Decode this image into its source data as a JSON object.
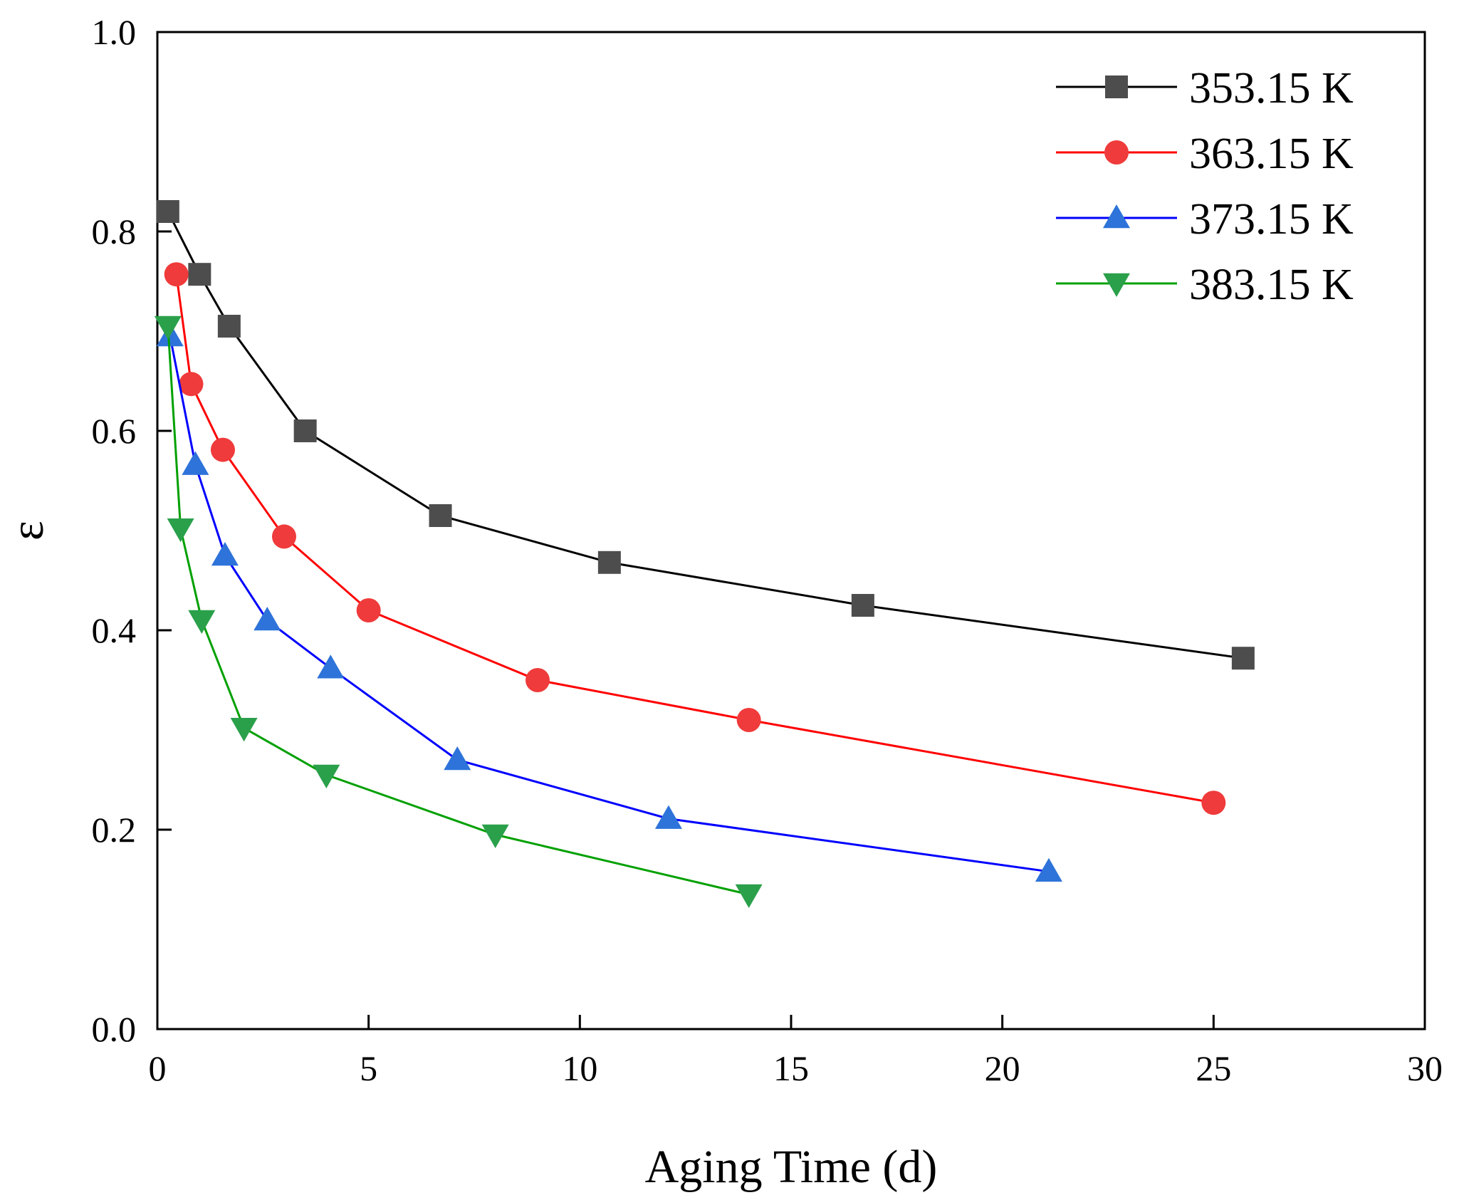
{
  "chart_data": {
    "type": "line",
    "title": "",
    "xlabel": "Aging Time (d)",
    "ylabel": "ε",
    "xlim": [
      0,
      30
    ],
    "ylim": [
      0.0,
      1.0
    ],
    "xticks": [
      0,
      5,
      10,
      15,
      20,
      25,
      30
    ],
    "xtick_labels": [
      "0",
      "5",
      "10",
      "15",
      "20",
      "25",
      "30"
    ],
    "yticks": [
      0.0,
      0.2,
      0.4,
      0.6,
      0.8,
      1.0
    ],
    "ytick_labels": [
      "0.0",
      "0.2",
      "0.4",
      "0.6",
      "0.8",
      "1.0"
    ],
    "grid": false,
    "legend_position": "top-right",
    "series": [
      {
        "name": "353.15 K",
        "color": "#000000",
        "marker_color": "#4d4d4d",
        "marker": "square",
        "x": [
          0.25,
          1.0,
          1.7,
          3.5,
          6.7,
          10.7,
          16.7,
          25.7
        ],
        "y": [
          0.82,
          0.757,
          0.705,
          0.6,
          0.515,
          0.468,
          0.425,
          0.372
        ]
      },
      {
        "name": "363.15 K",
        "color": "#ff0000",
        "marker_color": "#ef3b3b",
        "marker": "circle",
        "x": [
          0.45,
          0.8,
          1.55,
          3.0,
          5.0,
          9.0,
          14.0,
          25.0
        ],
        "y": [
          0.757,
          0.647,
          0.581,
          0.494,
          0.42,
          0.35,
          0.31,
          0.227
        ]
      },
      {
        "name": "373.15 K",
        "color": "#0000ff",
        "marker_color": "#2d73d9",
        "marker": "triangle-up",
        "x": [
          0.3,
          0.9,
          1.6,
          2.6,
          4.1,
          7.1,
          12.1,
          21.1
        ],
        "y": [
          0.695,
          0.566,
          0.475,
          0.41,
          0.362,
          0.27,
          0.211,
          0.158
        ]
      },
      {
        "name": "383.15 K",
        "color": "#00a000",
        "marker_color": "#2aa04a",
        "marker": "triangle-down",
        "x": [
          0.25,
          0.55,
          1.05,
          2.05,
          4.0,
          8.0,
          14.0
        ],
        "y": [
          0.705,
          0.502,
          0.41,
          0.302,
          0.255,
          0.195,
          0.135
        ]
      }
    ]
  }
}
